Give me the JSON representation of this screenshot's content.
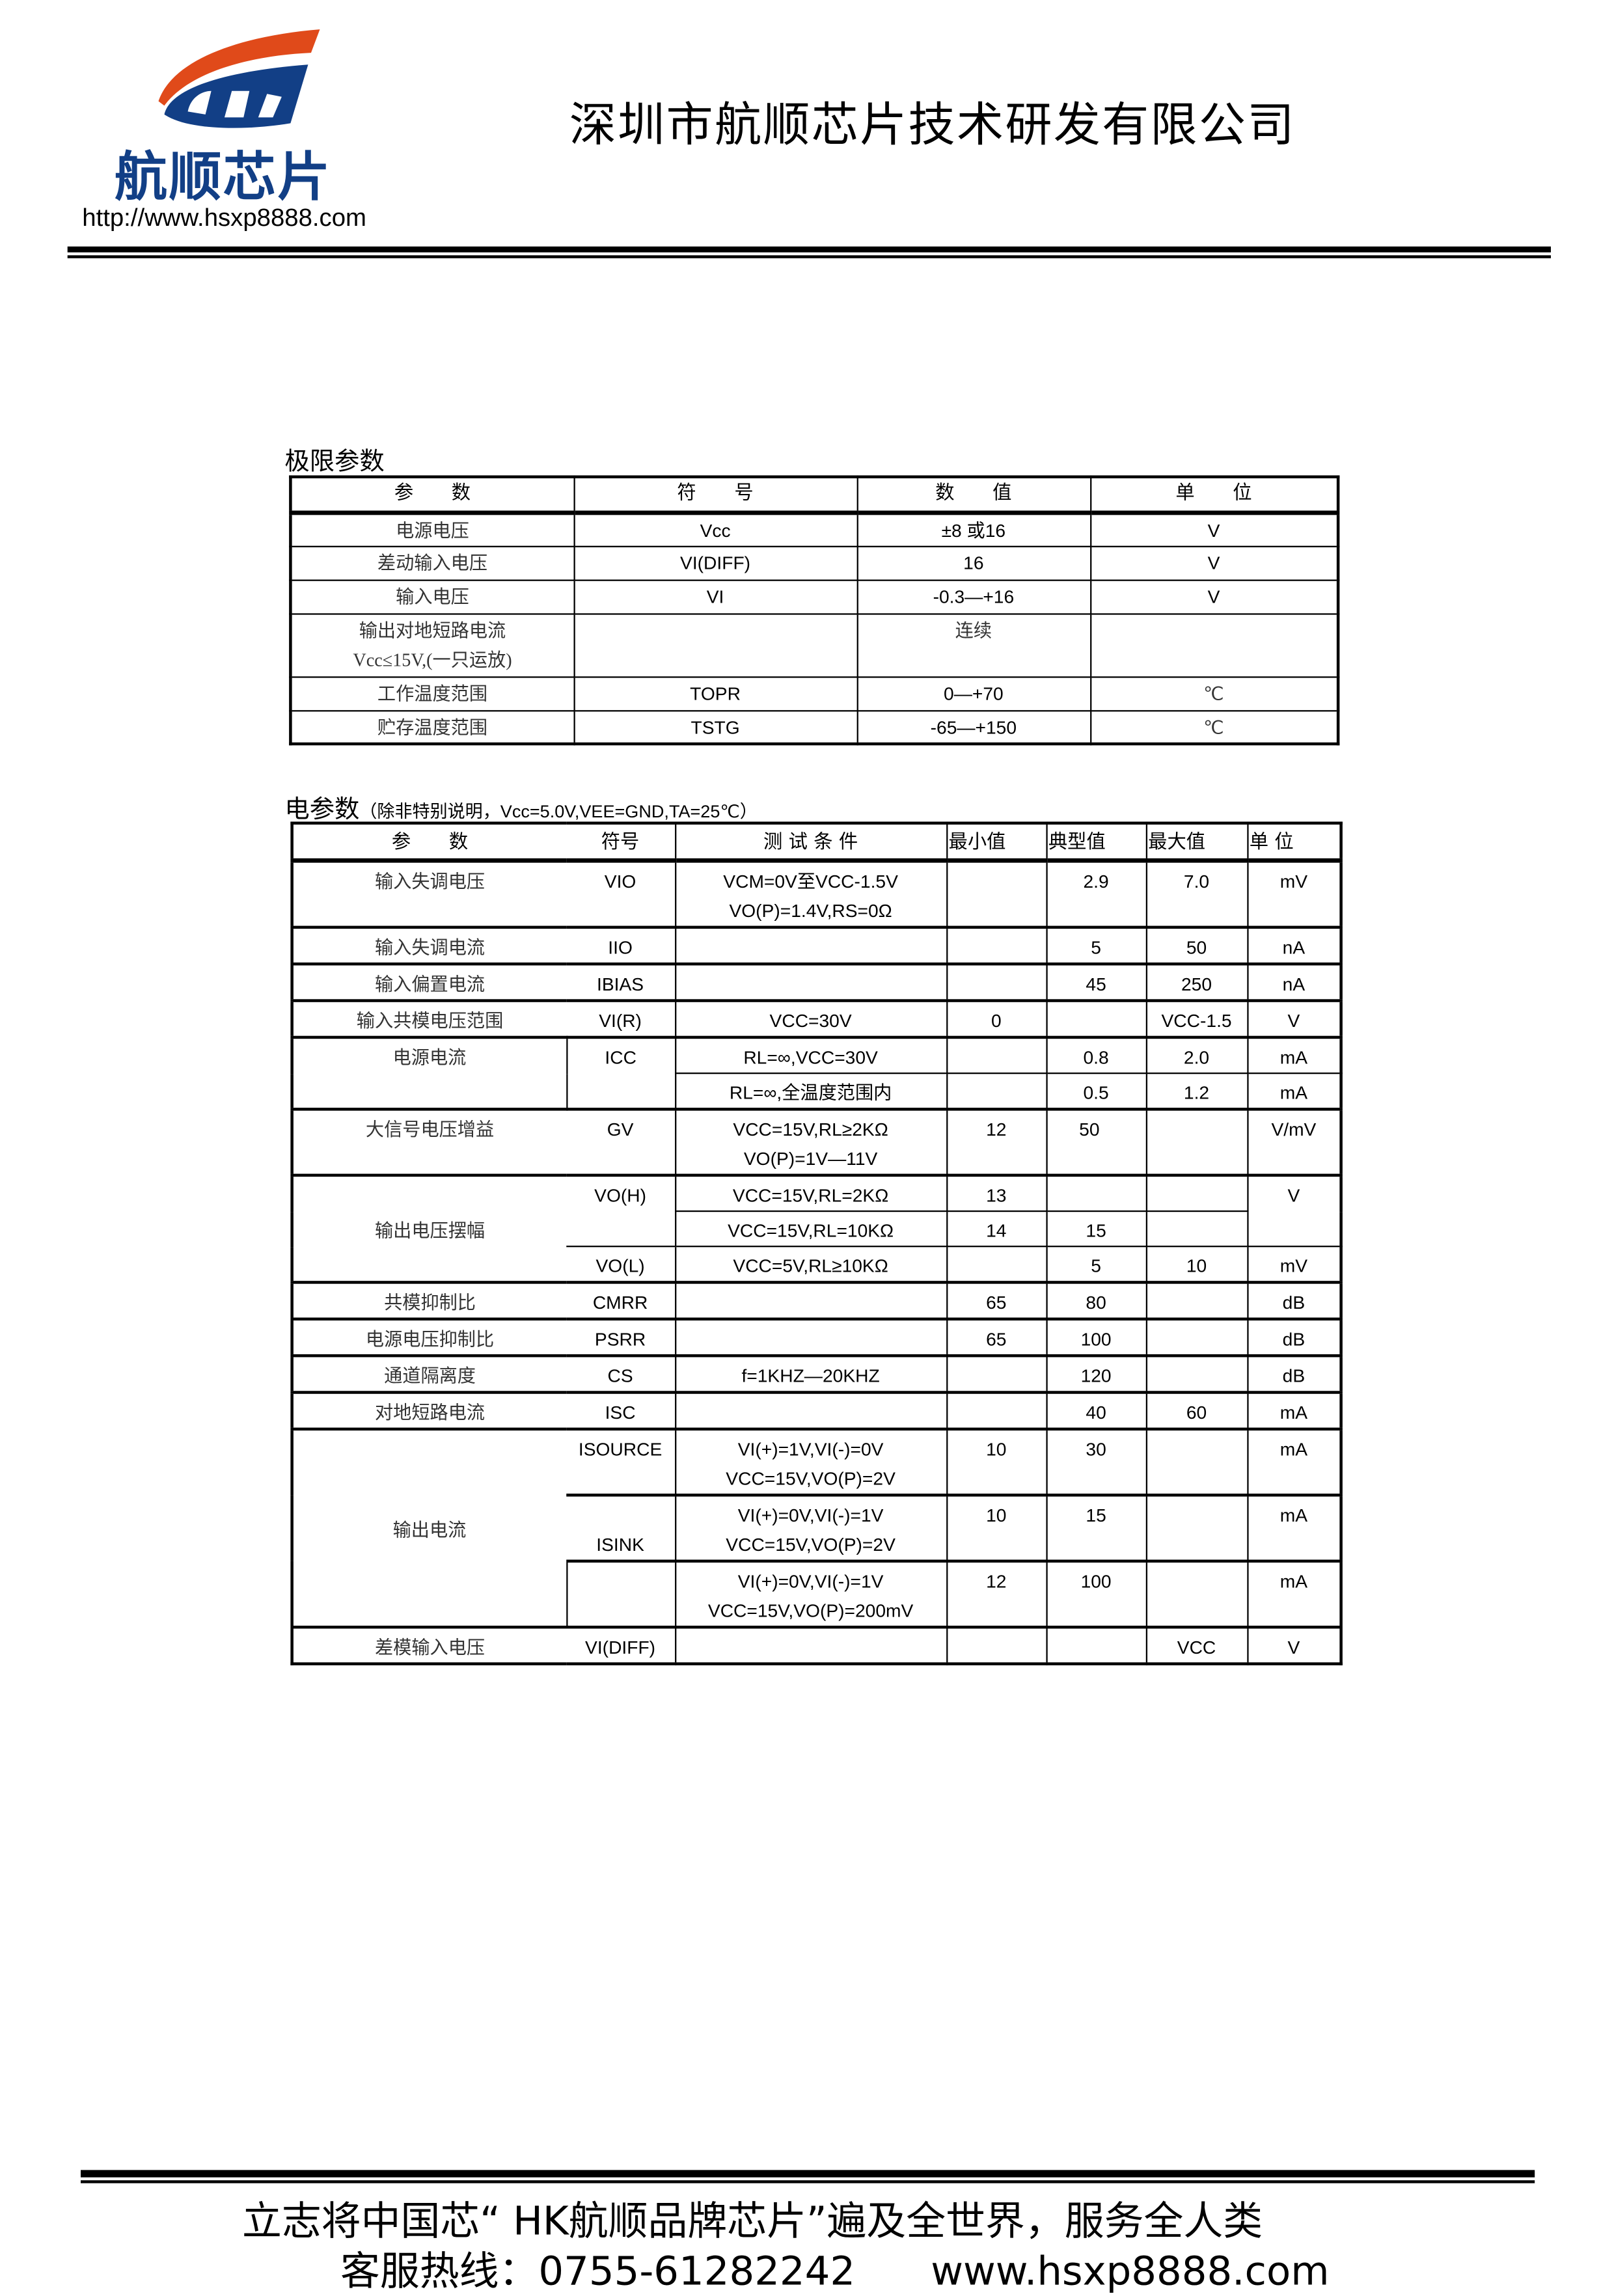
{
  "header": {
    "logo_text": "航顺芯片",
    "logo_colors": {
      "orange": "#e04a1a",
      "blue": "#123f86"
    },
    "url": "http://www.hsxp8888.com",
    "company": "深圳市航顺芯片技术研发有限公司"
  },
  "limits": {
    "title": "极限参数",
    "headers": [
      "参　　数",
      "符　　号",
      "数　　值",
      "单　　位"
    ],
    "rows": [
      {
        "param": "电源电压",
        "symbol": "Vcc",
        "value": "±8  或16",
        "unit": "V"
      },
      {
        "param": "差动输入电压",
        "symbol": "VI(DIFF)",
        "value": "16",
        "unit": "V"
      },
      {
        "param": "输入电压",
        "symbol": "VI",
        "value": "-0.3—+16",
        "unit": "V"
      },
      {
        "param": "输出对地短路电流",
        "param2": "Vcc≤15V,(一只运放)",
        "symbol": "",
        "value": "连续",
        "unit": ""
      },
      {
        "param": "工作温度范围",
        "symbol": "TOPR",
        "value": "0—+70",
        "unit": "℃"
      },
      {
        "param": "贮存温度范围",
        "symbol": "TSTG",
        "value": "-65—+150",
        "unit": "℃"
      }
    ]
  },
  "electrical": {
    "title": "电参数",
    "note": "（除非特别说明，Vcc=5.0V,VEE=GND,TA=25℃）",
    "headers": [
      "参　　数",
      "符号",
      "测 试 条 件",
      "最小值",
      "典型值",
      "最大值",
      "单 位"
    ],
    "rows": {
      "vio": {
        "param": "输入失调电压",
        "symbol": "VIO",
        "cond1": "VCM=0V至VCC-1.5V",
        "cond2": "VO(P)=1.4V,RS=0Ω",
        "min": "",
        "typ": "2.9",
        "max": "7.0",
        "unit": "mV"
      },
      "iio": {
        "param": "输入失调电流",
        "symbol": "IIO",
        "cond": "",
        "min": "",
        "typ": "5",
        "max": "50",
        "unit": "nA"
      },
      "ibias": {
        "param": "输入偏置电流",
        "symbol": "IBIAS",
        "cond": "",
        "min": "",
        "typ": "45",
        "max": "250",
        "unit": "nA"
      },
      "vir": {
        "param": "输入共模电压范围",
        "symbol": "VI(R)",
        "cond": "VCC=30V",
        "min": "0",
        "typ": "",
        "max": "VCC-1.5",
        "unit": "V"
      },
      "icc": {
        "param": "电源电流",
        "symbol": "ICC",
        "a": {
          "cond": "RL=∞,VCC=30V",
          "typ": "0.8",
          "max": "2.0",
          "unit": "mA"
        },
        "b": {
          "cond": "RL=∞,全温度范围内",
          "typ": "0.5",
          "max": "1.2",
          "unit": "mA"
        }
      },
      "gv": {
        "param": "大信号电压增益",
        "symbol": "GV",
        "cond1": "VCC=15V,RL≥2KΩ",
        "cond2": "VO(P)=1V—11V",
        "min": "12",
        "typ": "50",
        "max": "",
        "unit": "V/mV"
      },
      "swing": {
        "param": "输出电压摆幅",
        "symbol_h": "VO(H)",
        "symbol_l": "VO(L)",
        "a": {
          "cond": "VCC=15V,RL=2KΩ",
          "min": "13",
          "typ": "",
          "max": ""
        },
        "b": {
          "cond": "VCC=15V,RL=10KΩ",
          "min": "14",
          "typ": "15",
          "max": ""
        },
        "unit_h": "V",
        "c": {
          "cond": "VCC=5V,RL≥10KΩ",
          "min": "",
          "typ": "5",
          "max": "10",
          "unit": "mV"
        }
      },
      "cmrr": {
        "param": "共模抑制比",
        "symbol": "CMRR",
        "cond": "",
        "min": "65",
        "typ": "80",
        "max": "",
        "unit": "dB"
      },
      "psrr": {
        "param": "电源电压抑制比",
        "symbol": "PSRR",
        "cond": "",
        "min": "65",
        "typ": "100",
        "max": "",
        "unit": "dB"
      },
      "cs": {
        "param": "通道隔离度",
        "symbol": "CS",
        "cond": "f=1KHZ—20KHZ",
        "min": "",
        "typ": "120",
        "max": "",
        "unit": "dB"
      },
      "isc": {
        "param": "对地短路电流",
        "symbol": "ISC",
        "cond": "",
        "min": "",
        "typ": "40",
        "max": "60",
        "unit": "mA"
      },
      "iout": {
        "param": "输出电流",
        "symbol_source": "ISOURCE",
        "symbol_sink": "ISINK",
        "a": {
          "cond1": "VI(+)=1V,VI(-)=0V",
          "cond2": "VCC=15V,VO(P)=2V",
          "min": "10",
          "typ": "30",
          "max": "",
          "unit": "mA"
        },
        "b": {
          "cond1": "VI(+)=0V,VI(-)=1V",
          "cond2": "VCC=15V,VO(P)=2V",
          "min": "10",
          "typ": "15",
          "max": "",
          "unit": "mA"
        },
        "c": {
          "cond1": "VI(+)=0V,VI(-)=1V",
          "cond2": "VCC=15V,VO(P)=200mV",
          "min": "12",
          "typ": "100",
          "max": "",
          "unit": "mA"
        }
      },
      "vidiff": {
        "param": "差模输入电压",
        "symbol": "VI(DIFF)",
        "cond": "",
        "min": "",
        "typ": "",
        "max": "VCC",
        "unit": "V"
      }
    }
  },
  "footer": {
    "line1": "立志将中国芯“ HK航顺品牌芯片”遍及全世界，服务全人类",
    "line2": "客服热线：0755-61282242      www.hsxp8888.com"
  }
}
